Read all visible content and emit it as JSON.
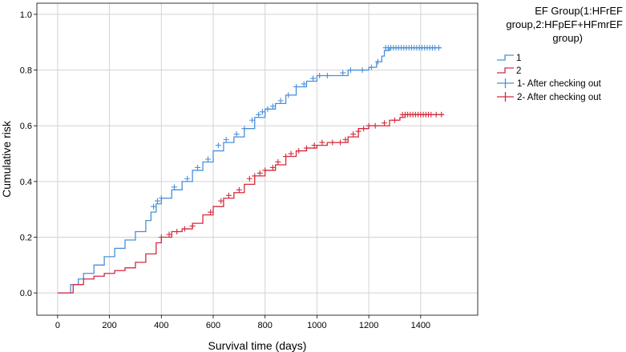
{
  "chart_data": {
    "type": "line",
    "title": "",
    "xlabel": "Survival time (days)",
    "ylabel": "Cumulative risk",
    "xlim": [
      -80,
      1620
    ],
    "ylim": [
      -0.08,
      1.04
    ],
    "x_ticks": [
      0,
      200,
      400,
      600,
      800,
      1000,
      1200,
      1400
    ],
    "x_tick_labels": [
      "0",
      "200",
      "400",
      "600",
      "800",
      "1000",
      "1200",
      "1400"
    ],
    "y_ticks": [
      0.0,
      0.2,
      0.4,
      0.6,
      0.8,
      1.0
    ],
    "y_tick_labels": [
      "0.0",
      "0.2",
      "0.4",
      "0.6",
      "0.8",
      "1.0"
    ],
    "grid": true,
    "legend": {
      "placement": "right",
      "title_lines": [
        "EF Group(1:HFrEF",
        "group,2:HFpEF+HFmrEF",
        "group)"
      ],
      "entries": [
        {
          "label": "1",
          "kind": "line",
          "color": "#4a8fd8"
        },
        {
          "label": "2",
          "kind": "line",
          "color": "#d42a3c"
        },
        {
          "label": "1- After checking out",
          "kind": "censor",
          "color": "#4a8fd8"
        },
        {
          "label": "2- After checking out",
          "kind": "censor",
          "color": "#d42a3c"
        }
      ]
    },
    "series": [
      {
        "name": "1",
        "color": "#4a8fd8",
        "x": [
          0,
          30,
          50,
          80,
          100,
          140,
          180,
          220,
          260,
          300,
          340,
          360,
          380,
          400,
          440,
          480,
          520,
          560,
          600,
          640,
          680,
          720,
          760,
          800,
          840,
          880,
          920,
          960,
          1000,
          1040,
          1080,
          1120,
          1160,
          1200,
          1230,
          1250,
          1260,
          1280,
          1480
        ],
        "y": [
          0.0,
          0.0,
          0.03,
          0.05,
          0.07,
          0.1,
          0.13,
          0.16,
          0.19,
          0.22,
          0.26,
          0.29,
          0.32,
          0.34,
          0.37,
          0.4,
          0.44,
          0.47,
          0.51,
          0.54,
          0.56,
          0.59,
          0.63,
          0.66,
          0.68,
          0.71,
          0.74,
          0.76,
          0.78,
          0.78,
          0.78,
          0.8,
          0.8,
          0.81,
          0.83,
          0.85,
          0.87,
          0.88,
          0.88
        ]
      },
      {
        "name": "2",
        "color": "#d42a3c",
        "x": [
          0,
          30,
          60,
          100,
          140,
          180,
          220,
          260,
          300,
          340,
          380,
          400,
          440,
          480,
          520,
          560,
          600,
          640,
          680,
          720,
          760,
          800,
          840,
          880,
          920,
          960,
          1000,
          1040,
          1080,
          1120,
          1160,
          1200,
          1240,
          1280,
          1300,
          1320,
          1340,
          1490
        ],
        "y": [
          0.0,
          0.0,
          0.03,
          0.05,
          0.06,
          0.07,
          0.08,
          0.09,
          0.11,
          0.14,
          0.18,
          0.2,
          0.22,
          0.23,
          0.25,
          0.28,
          0.31,
          0.34,
          0.36,
          0.39,
          0.42,
          0.44,
          0.46,
          0.49,
          0.51,
          0.52,
          0.53,
          0.54,
          0.54,
          0.56,
          0.59,
          0.6,
          0.6,
          0.62,
          0.62,
          0.63,
          0.64,
          0.64
        ]
      }
    ],
    "censor_marks": [
      {
        "series": "1",
        "x": [
          370,
          385,
          400,
          450,
          500,
          540,
          580,
          620,
          650,
          690,
          720,
          750,
          775,
          790,
          810,
          830,
          860,
          890,
          920,
          950,
          985,
          1010,
          1040,
          1100,
          1130,
          1175,
          1210,
          1235,
          1265,
          1275,
          1285,
          1295,
          1305,
          1315,
          1325,
          1335,
          1345,
          1355,
          1365,
          1375,
          1385,
          1395,
          1405,
          1415,
          1425,
          1435,
          1445,
          1455,
          1470
        ],
        "y": [
          0.31,
          0.33,
          0.34,
          0.38,
          0.41,
          0.45,
          0.48,
          0.53,
          0.55,
          0.57,
          0.59,
          0.62,
          0.64,
          0.65,
          0.66,
          0.67,
          0.69,
          0.71,
          0.74,
          0.75,
          0.77,
          0.78,
          0.78,
          0.79,
          0.8,
          0.8,
          0.81,
          0.83,
          0.88,
          0.88,
          0.88,
          0.88,
          0.88,
          0.88,
          0.88,
          0.88,
          0.88,
          0.88,
          0.88,
          0.88,
          0.88,
          0.88,
          0.88,
          0.88,
          0.88,
          0.88,
          0.88,
          0.88,
          0.88
        ]
      },
      {
        "series": "2",
        "x": [
          400,
          430,
          460,
          490,
          520,
          590,
          630,
          660,
          700,
          740,
          760,
          780,
          800,
          830,
          850,
          880,
          900,
          930,
          960,
          990,
          1020,
          1060,
          1090,
          1110,
          1140,
          1160,
          1180,
          1200,
          1225,
          1260,
          1300,
          1330,
          1340,
          1350,
          1360,
          1370,
          1380,
          1390,
          1400,
          1410,
          1420,
          1430,
          1440,
          1460,
          1480
        ],
        "y": [
          0.2,
          0.21,
          0.22,
          0.23,
          0.24,
          0.29,
          0.33,
          0.35,
          0.37,
          0.41,
          0.42,
          0.43,
          0.44,
          0.45,
          0.47,
          0.49,
          0.5,
          0.51,
          0.52,
          0.53,
          0.54,
          0.54,
          0.54,
          0.55,
          0.57,
          0.58,
          0.59,
          0.6,
          0.6,
          0.61,
          0.62,
          0.64,
          0.64,
          0.64,
          0.64,
          0.64,
          0.64,
          0.64,
          0.64,
          0.64,
          0.64,
          0.64,
          0.64,
          0.64,
          0.64
        ]
      }
    ]
  }
}
